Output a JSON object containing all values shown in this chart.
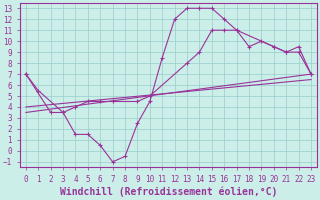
{
  "xlabel": "Windchill (Refroidissement éolien,°C)",
  "bg_color": "#cceee8",
  "line_color": "#993399",
  "grid_color": "#99cccc",
  "xlim": [
    -0.5,
    23.5
  ],
  "ylim": [
    -1.5,
    13.5
  ],
  "xticks": [
    0,
    1,
    2,
    3,
    4,
    5,
    6,
    7,
    8,
    9,
    10,
    11,
    12,
    13,
    14,
    15,
    16,
    17,
    18,
    19,
    20,
    21,
    22,
    23
  ],
  "yticks": [
    -1,
    0,
    1,
    2,
    3,
    4,
    5,
    6,
    7,
    8,
    9,
    10,
    11,
    12,
    13
  ],
  "line1_x": [
    0,
    1,
    3,
    4,
    5,
    6,
    7,
    8,
    9,
    10,
    11,
    12,
    13,
    14,
    15,
    16,
    17,
    18,
    19,
    20,
    21,
    22,
    23
  ],
  "line1_y": [
    7,
    5.5,
    3.5,
    1.5,
    1.5,
    0.5,
    -1,
    -0.5,
    2.5,
    4.5,
    8.5,
    12,
    13,
    13,
    13,
    12,
    11,
    9.5,
    10,
    9.5,
    9,
    9.5,
    7
  ],
  "line2_x": [
    0,
    2,
    3,
    4,
    5,
    6,
    7,
    9,
    10,
    13,
    14,
    15,
    16,
    17,
    20,
    21,
    22,
    23
  ],
  "line2_y": [
    7,
    3.5,
    3.5,
    4,
    4.5,
    4.5,
    4.5,
    4.5,
    5,
    8,
    9,
    11,
    11,
    11,
    9.5,
    9,
    9,
    7
  ],
  "line3_x": [
    0,
    23
  ],
  "line3_y": [
    4,
    6.5
  ],
  "line4_x": [
    0,
    23
  ],
  "line4_y": [
    3.5,
    7
  ],
  "font_color": "#993399",
  "tick_fontsize": 5.5,
  "xlabel_fontsize": 7.0
}
